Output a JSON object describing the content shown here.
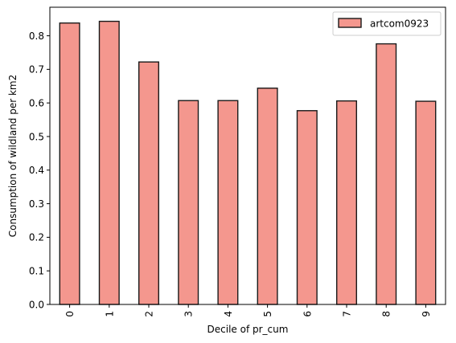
{
  "chart_data": {
    "type": "bar",
    "categories": [
      "0",
      "1",
      "2",
      "3",
      "4",
      "5",
      "6",
      "7",
      "8",
      "9"
    ],
    "series": [
      {
        "name": "artcom0923",
        "values": [
          0.838,
          0.843,
          0.722,
          0.607,
          0.607,
          0.644,
          0.577,
          0.606,
          0.776,
          0.605
        ]
      }
    ],
    "title": "",
    "xlabel": "Decile of pr_cum",
    "ylabel": "Consumption of wildland per km2",
    "ylim": [
      0,
      0.885
    ],
    "yticks": [
      "0.0",
      "0.1",
      "0.2",
      "0.3",
      "0.4",
      "0.5",
      "0.6",
      "0.7",
      "0.8"
    ],
    "grid": false,
    "legend_position": "top-right",
    "colors": {
      "bar_fill": "#f4978e",
      "bar_edge": "#1a1a1a",
      "axis": "#000000"
    }
  }
}
